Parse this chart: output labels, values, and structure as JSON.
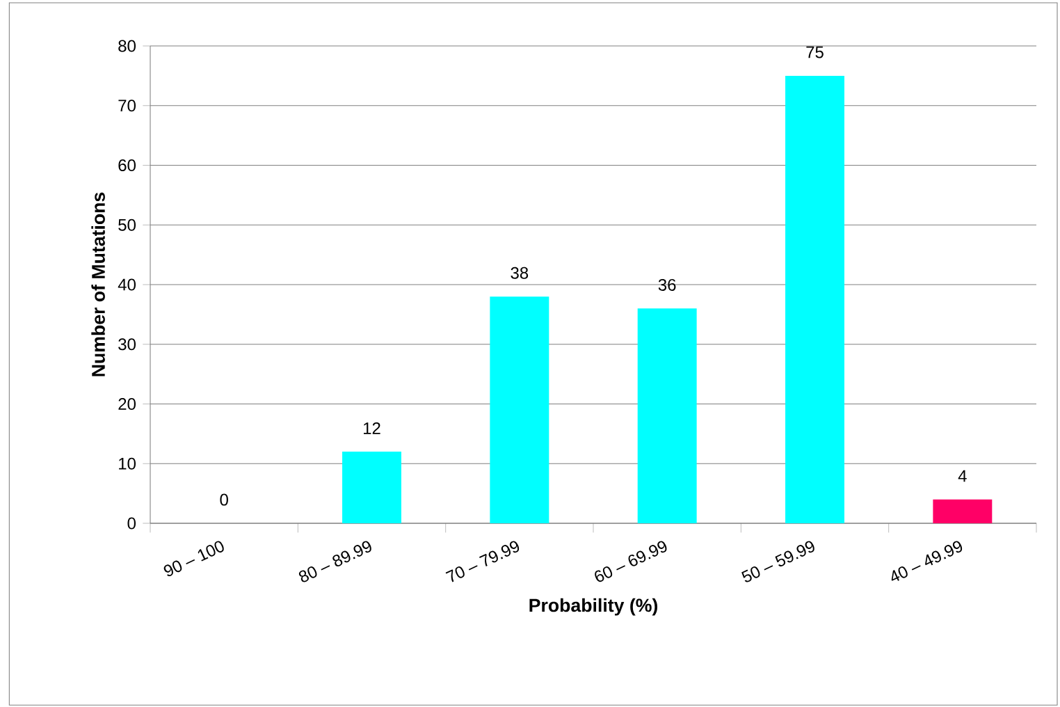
{
  "chart_data": {
    "type": "bar",
    "xlabel": "Probability (%)",
    "ylabel": "Number of Mutations",
    "categories": [
      "90 – 100",
      "80 – 89.99",
      "70 – 79.99",
      "60 – 69.99",
      "50 – 59.99",
      "40 – 49.99"
    ],
    "values": [
      0,
      12,
      38,
      36,
      75,
      4
    ],
    "colors": [
      "#00ffff",
      "#00ffff",
      "#00ffff",
      "#00ffff",
      "#00ffff",
      "#ff0066"
    ],
    "ylim": [
      0,
      80
    ],
    "yticks": [
      0,
      10,
      20,
      30,
      40,
      50,
      60,
      70,
      80
    ],
    "grid": "y",
    "data_labels": true
  }
}
